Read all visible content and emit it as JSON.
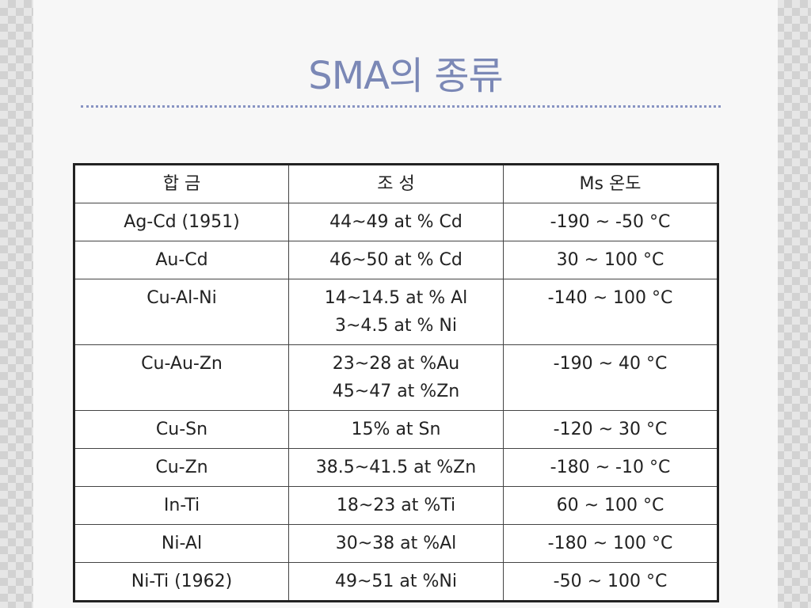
{
  "slide": {
    "title": "SMA의 종류"
  },
  "table": {
    "headers": [
      "합 금",
      "조 성",
      "Ms 온도"
    ],
    "rows": [
      {
        "alloy": "Ag-Cd (1951)",
        "composition": [
          "44~49 at % Cd"
        ],
        "ms": "-190 ~ -50 °C"
      },
      {
        "alloy": "Au-Cd",
        "composition": [
          "46~50 at % Cd"
        ],
        "ms": "30 ~ 100 °C"
      },
      {
        "alloy": "Cu-Al-Ni",
        "composition": [
          "14~14.5 at % Al",
          "3~4.5 at % Ni"
        ],
        "ms": "-140 ~ 100 °C"
      },
      {
        "alloy": "Cu-Au-Zn",
        "composition": [
          "23~28 at %Au",
          "45~47 at %Zn"
        ],
        "ms": "-190 ~ 40 °C"
      },
      {
        "alloy": "Cu-Sn",
        "composition": [
          "15% at Sn"
        ],
        "ms": "-120 ~ 30 °C"
      },
      {
        "alloy": "Cu-Zn",
        "composition": [
          "38.5~41.5 at %Zn"
        ],
        "ms": "-180 ~ -10 °C"
      },
      {
        "alloy": "In-Ti",
        "composition": [
          "18~23 at %Ti"
        ],
        "ms": "60 ~ 100 °C"
      },
      {
        "alloy": "Ni-Al",
        "composition": [
          "30~38 at %Al"
        ],
        "ms": "-180 ~ 100 °C"
      },
      {
        "alloy": "Ni-Ti (1962)",
        "composition": [
          "49~51 at %Ni"
        ],
        "ms": "-50 ~ 100 °C"
      }
    ]
  }
}
